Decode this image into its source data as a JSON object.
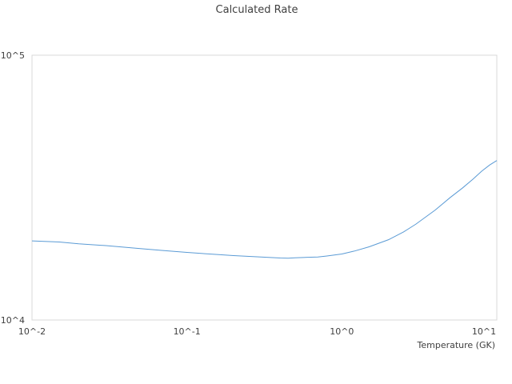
{
  "chart_data": {
    "type": "line",
    "title": "Calculated Rate",
    "xlabel": "Temperature (GK)",
    "ylabel": "",
    "x_scale": "log",
    "y_scale": "log",
    "xlim": [
      0.01,
      10
    ],
    "ylim": [
      10000,
      100000
    ],
    "x_ticks": [
      {
        "value": 0.01,
        "label": "10^-2"
      },
      {
        "value": 0.1,
        "label": "10^-1"
      },
      {
        "value": 1,
        "label": "10^0"
      },
      {
        "value": 10,
        "label": "10^1"
      }
    ],
    "y_ticks": [
      {
        "value": 10000,
        "label": "10^4"
      },
      {
        "value": 100000,
        "label": "10^5"
      }
    ],
    "grid": false,
    "series": [
      {
        "color": "#5b9bd5",
        "x": [
          0.01,
          0.015,
          0.02,
          0.03,
          0.05,
          0.07,
          0.1,
          0.15,
          0.2,
          0.3,
          0.4,
          0.45,
          0.5,
          0.6,
          0.7,
          0.8,
          1.0,
          1.2,
          1.5,
          2.0,
          2.5,
          3.0,
          4.0,
          5.0,
          6.0,
          7.0,
          8.0,
          9.0,
          10.0
        ],
        "y": [
          19900,
          19700,
          19400,
          19100,
          18600,
          18300,
          18000,
          17700,
          17500,
          17300,
          17150,
          17120,
          17180,
          17250,
          17300,
          17450,
          17750,
          18200,
          18900,
          20100,
          21500,
          23000,
          26000,
          29000,
          31500,
          34000,
          36500,
          38500,
          40000
        ]
      }
    ]
  }
}
